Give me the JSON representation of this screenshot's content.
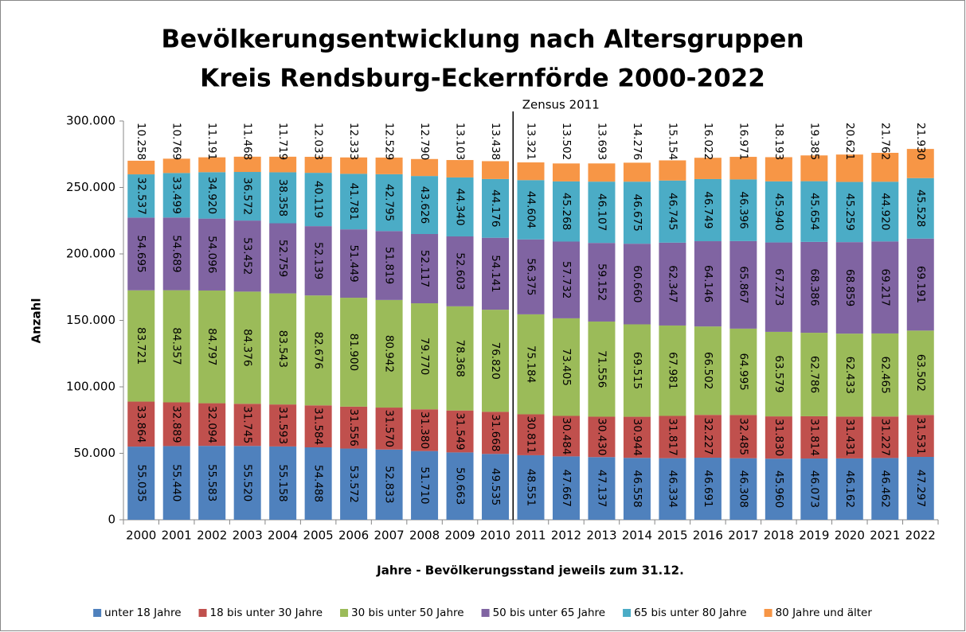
{
  "chart_data": {
    "type": "stacked_bar",
    "title": "Bevölkerungsentwicklung nach Altersgruppen",
    "subtitle": "Kreis Rendsburg-Eckernförde 2000-2022",
    "annotation": "Zensus 2011",
    "y_label": "Anzahl",
    "x_label": "Jahre - Bevölkerungsstand jeweils zum 31.12.",
    "categories": [
      "2000",
      "2001",
      "2002",
      "2003",
      "2004",
      "2005",
      "2006",
      "2007",
      "2008",
      "2009",
      "2010",
      "2011",
      "2012",
      "2013",
      "2014",
      "2015",
      "2016",
      "2017",
      "2018",
      "2019",
      "2020",
      "2021",
      "2022"
    ],
    "ylim": [
      0,
      300000
    ],
    "yticks": [
      0,
      {
        "value": 50000,
        "label": "50.000"
      },
      {
        "value": 100000,
        "label": "100.000"
      },
      {
        "value": 150000,
        "label": "150.000"
      },
      {
        "value": 200000,
        "label": "200.000"
      },
      {
        "value": 250000,
        "label": "250.000"
      },
      {
        "value": 300000,
        "label": "300.000"
      }
    ],
    "legend": "bottom",
    "series": [
      {
        "name": "unter 18 Jahre",
        "color": "#4f81bd",
        "values": [
          55035,
          55440,
          55583,
          55520,
          55158,
          54488,
          53572,
          52833,
          51710,
          50663,
          49535,
          48551,
          47667,
          47137,
          46558,
          46334,
          46691,
          46308,
          45960,
          46073,
          46162,
          46462,
          47297
        ],
        "value_labels": [
          "55.035",
          "55.440",
          "55.583",
          "55.520",
          "55.158",
          "54.488",
          "53.572",
          "52.833",
          "51.710",
          "50.663",
          "49.535",
          "48.551",
          "47.667",
          "47.137",
          "46.558",
          "46.334",
          "46.691",
          "46.308",
          "45.960",
          "46.073",
          "46.162",
          "46.462",
          "47.297"
        ]
      },
      {
        "name": "18 bis unter 30 Jahre",
        "color": "#c0504d",
        "values": [
          33864,
          32889,
          32094,
          31745,
          31593,
          31584,
          31556,
          31570,
          31380,
          31549,
          31668,
          30811,
          30484,
          30430,
          30944,
          31817,
          32227,
          32485,
          31830,
          31814,
          31431,
          31227,
          31531
        ],
        "value_labels": [
          "33.864",
          "32.889",
          "32.094",
          "31.745",
          "31.593",
          "31.584",
          "31.556",
          "31.570",
          "31.380",
          "31.549",
          "31.668",
          "30.811",
          "30.484",
          "30.430",
          "30.944",
          "31.817",
          "32.227",
          "32.485",
          "31.830",
          "31.814",
          "31.431",
          "31.227",
          "31.531"
        ]
      },
      {
        "name": "30 bis unter 50 Jahre",
        "color": "#9bbb59",
        "values": [
          83721,
          84357,
          84797,
          84376,
          83543,
          82676,
          81900,
          80942,
          79770,
          78368,
          76820,
          75184,
          73405,
          71556,
          69515,
          67981,
          66502,
          64995,
          63579,
          62786,
          62433,
          62465,
          63502
        ],
        "value_labels": [
          "83.721",
          "84.357",
          "84.797",
          "84.376",
          "83.543",
          "82.676",
          "81.900",
          "80.942",
          "79.770",
          "78.368",
          "76.820",
          "75.184",
          "73.405",
          "71.556",
          "69.515",
          "67.981",
          "66.502",
          "64.995",
          "63.579",
          "62.786",
          "62.433",
          "62.465",
          "63.502"
        ]
      },
      {
        "name": "50 bis unter 65 Jahre",
        "color": "#8064a2",
        "values": [
          54695,
          54689,
          54096,
          53452,
          52759,
          52139,
          51449,
          51819,
          52117,
          52603,
          54141,
          56375,
          57732,
          59152,
          60660,
          62347,
          64146,
          65867,
          67273,
          68386,
          68859,
          69217,
          69191
        ],
        "value_labels": [
          "54.695",
          "54.689",
          "54.096",
          "53.452",
          "52.759",
          "52.139",
          "51.449",
          "51.819",
          "52.117",
          "52.603",
          "54.141",
          "56.375",
          "57.732",
          "59.152",
          "60.660",
          "62.347",
          "64.146",
          "65.867",
          "67.273",
          "68.386",
          "68.859",
          "69.217",
          "69.191"
        ]
      },
      {
        "name": "65 bis unter 80 Jahre",
        "color": "#4bacc6",
        "values": [
          32537,
          33499,
          34920,
          36572,
          38358,
          40119,
          41781,
          42795,
          43626,
          44340,
          44176,
          44604,
          45268,
          46107,
          46675,
          46745,
          46749,
          46396,
          45940,
          45654,
          45259,
          44920,
          45528
        ],
        "value_labels": [
          "32.537",
          "33.499",
          "34.920",
          "36.572",
          "38.358",
          "40.119",
          "41.781",
          "42.795",
          "43.626",
          "44.340",
          "44.176",
          "44.604",
          "45.268",
          "46.107",
          "46.675",
          "46.745",
          "46.749",
          "46.396",
          "45.940",
          "45.654",
          "45.259",
          "44.920",
          "45.528"
        ]
      },
      {
        "name": "80 Jahre und älter",
        "color": "#f79646",
        "values": [
          10258,
          10769,
          11191,
          11468,
          11719,
          12033,
          12333,
          12529,
          12790,
          13103,
          13438,
          13321,
          13502,
          13693,
          14276,
          15154,
          16022,
          16971,
          18193,
          19385,
          20621,
          21762,
          21930
        ],
        "value_labels": [
          "10.258",
          "10.769",
          "11.191",
          "11.468",
          "11.719",
          "12.033",
          "12.333",
          "12.529",
          "12.790",
          "13.103",
          "13.438",
          "13.321",
          "13.502",
          "13.693",
          "14.276",
          "15.154",
          "16.022",
          "16.971",
          "18.193",
          "19.385",
          "20.621",
          "21.762",
          "21.930"
        ]
      }
    ]
  }
}
